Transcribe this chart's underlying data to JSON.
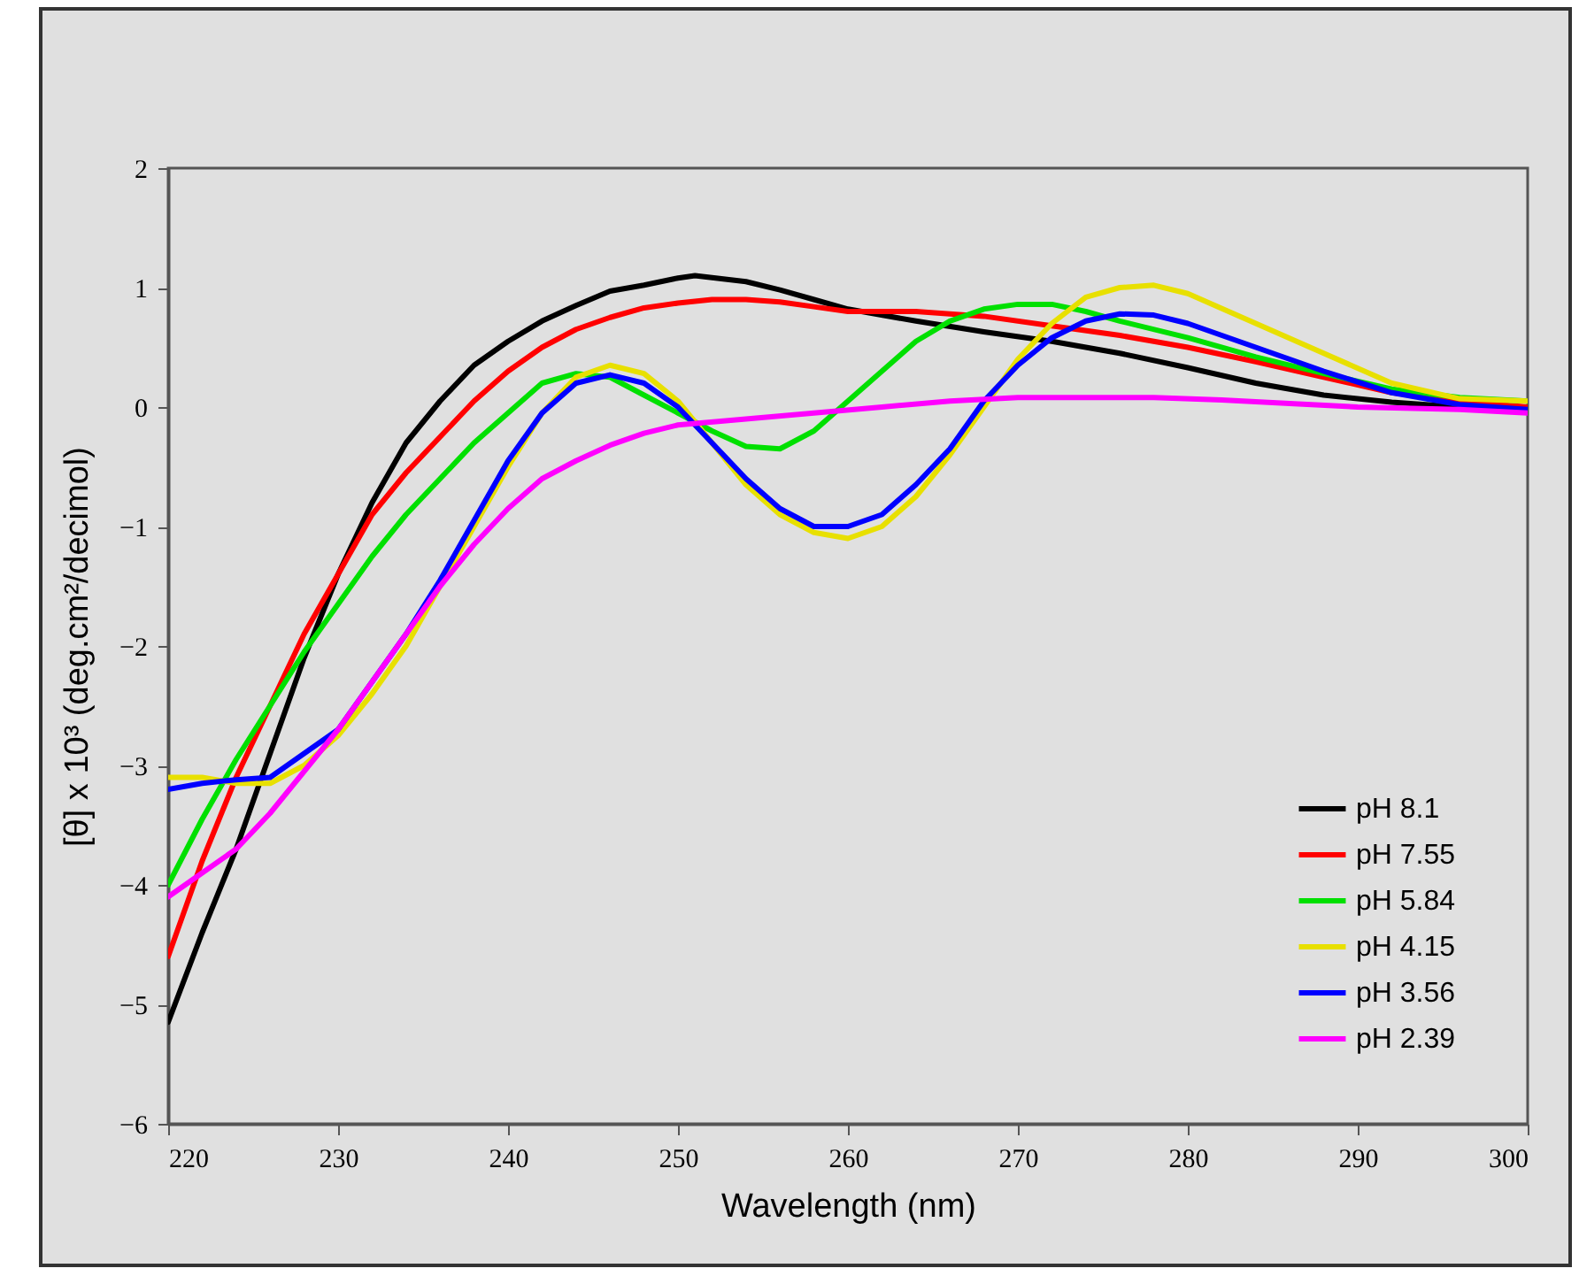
{
  "chart_data": {
    "type": "line",
    "xlabel": "Wavelength (nm)",
    "ylabel": "[θ] x 10³ (deg.cm²/decimol)",
    "xlim": [
      220,
      300
    ],
    "ylim": [
      -6,
      2
    ],
    "xticks": [
      220,
      230,
      240,
      250,
      260,
      270,
      280,
      290,
      300
    ],
    "yticks": [
      -6,
      -5,
      -4,
      -3,
      -2,
      -1,
      0,
      1,
      2
    ],
    "grid": false,
    "legend": "bottom right",
    "series": [
      {
        "name": "pH 8.1",
        "color": "#000000",
        "x": [
          220,
          222,
          224,
          226,
          228,
          230,
          232,
          234,
          236,
          238,
          240,
          242,
          244,
          246,
          248,
          250,
          251,
          254,
          256,
          258,
          260,
          264,
          268,
          272,
          276,
          280,
          284,
          288,
          292,
          296,
          300
        ],
        "values": [
          -5.15,
          -4.4,
          -3.7,
          -2.9,
          -2.1,
          -1.4,
          -0.8,
          -0.3,
          0.05,
          0.35,
          0.55,
          0.72,
          0.85,
          0.97,
          1.02,
          1.08,
          1.1,
          1.05,
          0.98,
          0.9,
          0.82,
          0.72,
          0.63,
          0.55,
          0.45,
          0.33,
          0.2,
          0.1,
          0.04,
          0.0,
          -0.02
        ]
      },
      {
        "name": "pH 7.55",
        "color": "#ff0000",
        "x": [
          220,
          222,
          224,
          226,
          228,
          230,
          232,
          234,
          236,
          238,
          240,
          242,
          244,
          246,
          248,
          250,
          252,
          254,
          256,
          258,
          260,
          264,
          268,
          272,
          276,
          280,
          284,
          288,
          292,
          296,
          300
        ],
        "values": [
          -4.6,
          -3.8,
          -3.1,
          -2.5,
          -1.9,
          -1.4,
          -0.9,
          -0.55,
          -0.25,
          0.05,
          0.3,
          0.5,
          0.65,
          0.75,
          0.83,
          0.87,
          0.9,
          0.9,
          0.88,
          0.84,
          0.8,
          0.8,
          0.76,
          0.68,
          0.6,
          0.5,
          0.38,
          0.25,
          0.12,
          0.05,
          0.0
        ]
      },
      {
        "name": "pH 5.84",
        "color": "#00e000",
        "x": [
          220,
          222,
          224,
          226,
          228,
          230,
          232,
          234,
          236,
          238,
          240,
          242,
          244,
          246,
          248,
          250,
          252,
          254,
          256,
          258,
          260,
          262,
          264,
          266,
          268,
          270,
          272,
          274,
          276,
          280,
          284,
          288,
          292,
          296,
          300
        ],
        "values": [
          -4.0,
          -3.45,
          -2.95,
          -2.5,
          -2.05,
          -1.65,
          -1.25,
          -0.9,
          -0.6,
          -0.3,
          -0.05,
          0.2,
          0.28,
          0.25,
          0.1,
          -0.05,
          -0.2,
          -0.33,
          -0.35,
          -0.2,
          0.05,
          0.3,
          0.55,
          0.72,
          0.82,
          0.86,
          0.86,
          0.8,
          0.72,
          0.58,
          0.42,
          0.28,
          0.15,
          0.08,
          0.05
        ]
      },
      {
        "name": "pH 4.15",
        "color": "#e8e000",
        "x": [
          220,
          222,
          224,
          226,
          228,
          230,
          232,
          234,
          236,
          238,
          240,
          242,
          244,
          246,
          248,
          250,
          252,
          254,
          256,
          258,
          260,
          262,
          264,
          266,
          268,
          270,
          272,
          274,
          276,
          278,
          280,
          284,
          288,
          292,
          296,
          300
        ],
        "values": [
          -3.1,
          -3.1,
          -3.15,
          -3.15,
          -3.0,
          -2.75,
          -2.4,
          -2.0,
          -1.5,
          -1.0,
          -0.5,
          -0.05,
          0.25,
          0.35,
          0.28,
          0.05,
          -0.3,
          -0.65,
          -0.9,
          -1.05,
          -1.1,
          -1.0,
          -0.75,
          -0.4,
          0.0,
          0.4,
          0.7,
          0.92,
          1.0,
          1.02,
          0.95,
          0.7,
          0.45,
          0.2,
          0.07,
          0.05
        ]
      },
      {
        "name": "pH 3.56",
        "color": "#0000ff",
        "x": [
          220,
          222,
          224,
          226,
          228,
          230,
          232,
          234,
          236,
          238,
          240,
          242,
          244,
          246,
          248,
          250,
          252,
          254,
          256,
          258,
          260,
          262,
          264,
          266,
          268,
          270,
          272,
          274,
          276,
          278,
          280,
          284,
          288,
          292,
          296,
          300
        ],
        "values": [
          -3.2,
          -3.15,
          -3.12,
          -3.1,
          -2.9,
          -2.7,
          -2.3,
          -1.9,
          -1.45,
          -0.95,
          -0.45,
          -0.05,
          0.2,
          0.27,
          0.2,
          0.0,
          -0.3,
          -0.6,
          -0.85,
          -1.0,
          -1.0,
          -0.9,
          -0.65,
          -0.35,
          0.05,
          0.35,
          0.58,
          0.72,
          0.78,
          0.77,
          0.7,
          0.5,
          0.3,
          0.12,
          0.02,
          -0.02
        ]
      },
      {
        "name": "pH 2.39",
        "color": "#ff00ff",
        "x": [
          220,
          222,
          224,
          226,
          228,
          230,
          232,
          234,
          236,
          238,
          240,
          242,
          244,
          246,
          248,
          250,
          254,
          258,
          262,
          266,
          270,
          274,
          278,
          282,
          286,
          290,
          296,
          300
        ],
        "values": [
          -4.1,
          -3.9,
          -3.7,
          -3.4,
          -3.05,
          -2.7,
          -2.3,
          -1.9,
          -1.5,
          -1.15,
          -0.85,
          -0.6,
          -0.45,
          -0.32,
          -0.22,
          -0.15,
          -0.1,
          -0.05,
          0.0,
          0.05,
          0.08,
          0.08,
          0.08,
          0.06,
          0.03,
          0.0,
          -0.02,
          -0.05
        ]
      }
    ]
  }
}
